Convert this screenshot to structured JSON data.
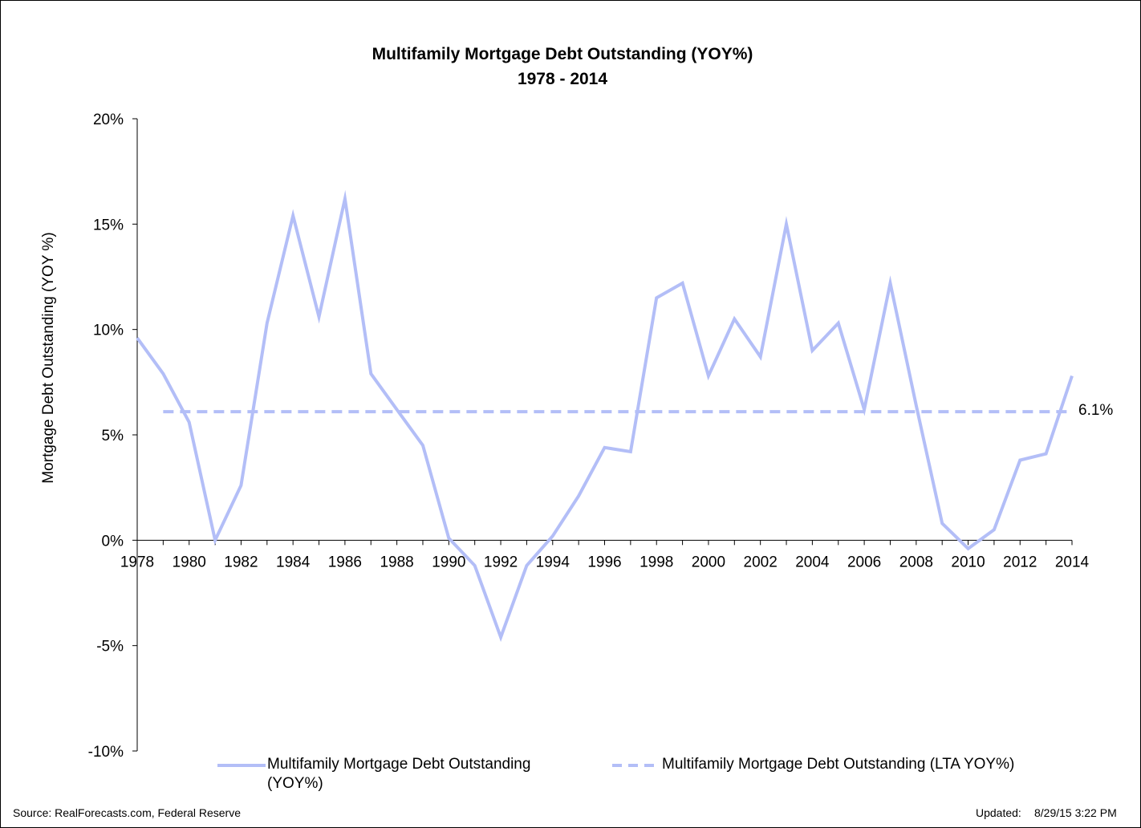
{
  "chart_data": {
    "type": "line",
    "title": "Multifamily Mortgage Debt Outstanding (YOY%)",
    "subtitle": "1978 - 2014",
    "ylabel": "Mortgage Debt Outstanding (YOY %)",
    "xlabel": "",
    "xlim": [
      1978,
      2014
    ],
    "ylim": [
      -10,
      20
    ],
    "x_tick_labels": [
      "1978",
      "1980",
      "1982",
      "1984",
      "1986",
      "1988",
      "1990",
      "1992",
      "1994",
      "1996",
      "1998",
      "2000",
      "2002",
      "2004",
      "2006",
      "2008",
      "2010",
      "2012",
      "2014"
    ],
    "y_tick_labels": [
      "20%",
      "15%",
      "10%",
      "5%",
      "0%",
      "-5%",
      "-10%"
    ],
    "y_ticks": [
      20,
      15,
      10,
      5,
      0,
      -5,
      -10
    ],
    "grid": false,
    "legend_position": "bottom",
    "x": [
      1978,
      1979,
      1980,
      1981,
      1982,
      1983,
      1984,
      1985,
      1986,
      1987,
      1988,
      1989,
      1990,
      1991,
      1992,
      1993,
      1994,
      1995,
      1996,
      1997,
      1998,
      1999,
      2000,
      2001,
      2002,
      2003,
      2004,
      2005,
      2006,
      2007,
      2008,
      2009,
      2010,
      2011,
      2012,
      2013,
      2014
    ],
    "series": [
      {
        "name": "Multifamily Mortgage Debt Outstanding (YOY%)",
        "style": "solid",
        "color": "#b3bef7",
        "values": [
          9.6,
          7.9,
          5.6,
          0.0,
          2.6,
          10.3,
          15.4,
          10.6,
          16.2,
          7.9,
          6.2,
          4.5,
          0.1,
          -1.2,
          -4.6,
          -1.2,
          0.2,
          2.1,
          4.4,
          4.2,
          11.5,
          12.2,
          7.8,
          10.5,
          8.7,
          15.0,
          9.0,
          10.3,
          6.2,
          12.2,
          6.4,
          0.8,
          -0.4,
          0.5,
          3.8,
          4.1,
          7.8
        ]
      },
      {
        "name": "Multifamily Mortgage Debt Outstanding (LTA YOY%)",
        "style": "dashed",
        "color": "#b3bef7",
        "x_range": [
          1979,
          2014
        ],
        "value": 6.1,
        "end_label": "6.1%"
      }
    ]
  },
  "legend": {
    "item1_line1": "Multifamily Mortgage Debt Outstanding",
    "item1_line2": "(YOY%)",
    "item2": "Multifamily Mortgage Debt Outstanding (LTA YOY%)"
  },
  "footer": {
    "source": "Source: RealForecasts.com, Federal Reserve",
    "updated_label": "Updated:",
    "updated_value": "8/29/15 3:22 PM"
  }
}
